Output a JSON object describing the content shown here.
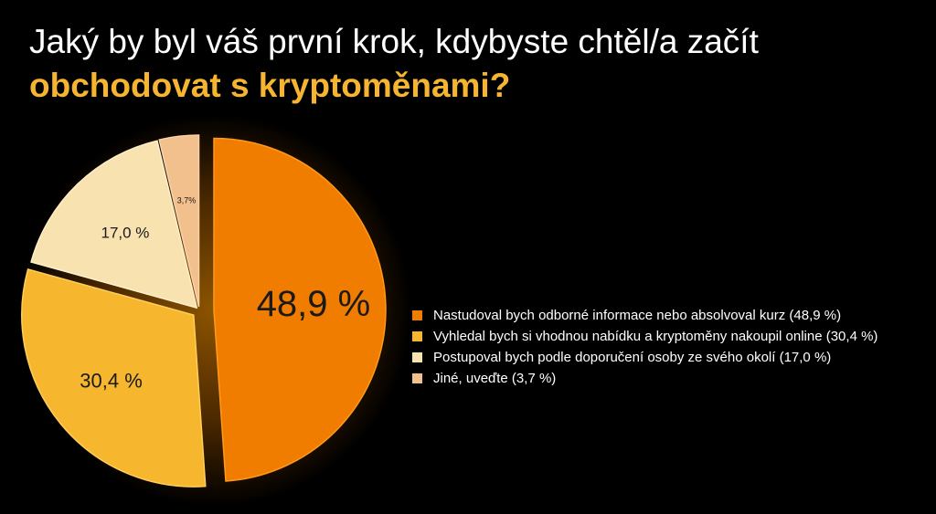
{
  "title": {
    "line1": "Jaký by byl váš první krok, kdybyste chtěl/a začít",
    "line2": "obchodovat s kryptoměnami?",
    "line2_color": "#f5b531"
  },
  "chart_data": {
    "type": "pie",
    "start_angle_deg": 0,
    "slices": [
      {
        "label": "Nastudoval bych odborné informace nebo absolvoval kurz (48,9 %)",
        "value": 48.9,
        "data_label": "48,9 %",
        "color": "#f07d00",
        "edge_color": "#ff9a1a"
      },
      {
        "label": "Vyhledal bych si vhodnou nabídku a kryptoměny nakoupil online (30,4 %)",
        "value": 30.4,
        "data_label": "30,4 %",
        "color": "#f6b62e",
        "edge_color": "#ffcf5a"
      },
      {
        "label": "Postupoval bych podle doporučení osoby ze svého okolí (17,0 %)",
        "value": 17.0,
        "data_label": "17,0 %",
        "color": "#f7e2b0",
        "edge_color": "#fff0cc"
      },
      {
        "label": "Jiné, uveďte (3,7 %)",
        "value": 3.7,
        "data_label": "3,7%",
        "color": "#f2c08c",
        "edge_color": "#f8d3a8"
      }
    ],
    "legend_position": "right"
  }
}
